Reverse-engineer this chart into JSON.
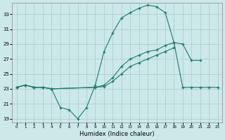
{
  "xlabel": "Humidex (Indice chaleur)",
  "curve1_x": [
    0,
    1,
    2,
    3,
    4,
    5,
    6,
    7,
    8,
    9,
    10,
    11,
    12,
    13,
    14,
    15,
    16,
    17,
    18,
    19,
    20,
    21
  ],
  "curve1_y": [
    23.2,
    23.5,
    23.2,
    23.2,
    23.0,
    20.5,
    20.2,
    19.0,
    20.5,
    23.5,
    28.0,
    30.5,
    32.5,
    33.2,
    33.8,
    34.2,
    34.0,
    33.2,
    29.2,
    29.0,
    26.8,
    26.8
  ],
  "curve2_x": [
    0,
    1,
    2,
    3,
    4,
    9,
    10,
    11,
    12,
    13,
    14,
    15,
    16,
    17,
    18,
    19,
    20,
    21,
    22,
    23
  ],
  "curve2_y": [
    23.2,
    23.5,
    23.2,
    23.2,
    23.0,
    23.2,
    23.5,
    24.5,
    26.0,
    27.0,
    27.5,
    28.0,
    28.2,
    28.8,
    29.2,
    23.2,
    23.2,
    23.2,
    23.2,
    23.2
  ],
  "curve3_x": [
    0,
    1,
    2,
    3,
    4,
    9,
    10,
    11,
    12,
    13,
    14,
    15,
    16,
    17,
    18
  ],
  "curve3_y": [
    23.2,
    23.5,
    23.2,
    23.2,
    23.0,
    23.2,
    23.3,
    24.0,
    25.0,
    26.0,
    26.5,
    27.0,
    27.5,
    28.0,
    28.5
  ],
  "line_color": "#1a7a6e",
  "bg_color": "#cde8e8",
  "grid_color": "#aed0d0",
  "ylim": [
    18.5,
    34.5
  ],
  "yticks": [
    19,
    21,
    23,
    25,
    27,
    29,
    31,
    33
  ],
  "xticks": [
    0,
    1,
    2,
    3,
    4,
    5,
    6,
    7,
    8,
    9,
    10,
    11,
    12,
    13,
    14,
    15,
    16,
    17,
    18,
    19,
    20,
    21,
    22,
    23
  ],
  "xlim": [
    -0.5,
    23.5
  ]
}
